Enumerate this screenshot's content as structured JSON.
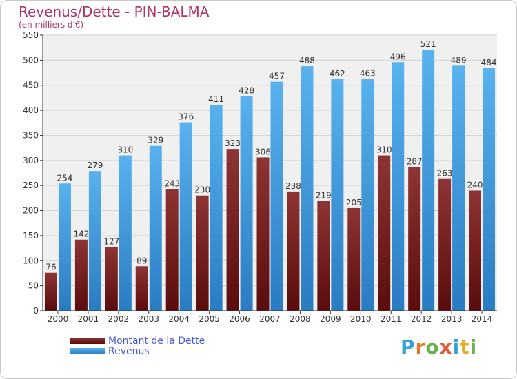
{
  "header": {
    "title": "Revenus/Dette - PIN-BALMA",
    "subtitle": "(en milliers d'€)"
  },
  "chart_data": {
    "type": "bar",
    "title": "Revenus/Dette - PIN-BALMA",
    "subtitle": "(en milliers d'€)",
    "categories": [
      "2000",
      "2001",
      "2002",
      "2003",
      "2004",
      "2005",
      "2006",
      "2007",
      "2008",
      "2009",
      "2010",
      "2011",
      "2012",
      "2013",
      "2014"
    ],
    "series": [
      {
        "name": "Montant de la Dette",
        "color": "#8a2a2a",
        "values": [
          76,
          142,
          127,
          89,
          243,
          230,
          323,
          306,
          238,
          219,
          205,
          310,
          287,
          263,
          240
        ]
      },
      {
        "name": "Revenus",
        "color": "#4aa6e6",
        "values": [
          254,
          279,
          310,
          329,
          376,
          411,
          428,
          457,
          488,
          462,
          463,
          496,
          521,
          489,
          484
        ]
      }
    ],
    "ylim": [
      0,
      550
    ],
    "yticks": [
      0,
      50,
      100,
      150,
      200,
      250,
      300,
      350,
      400,
      450,
      500,
      550
    ],
    "grid": true,
    "legend_position": "bottom-left"
  },
  "legend": {
    "items": [
      {
        "label": "Montant de la Dette",
        "color": "#8a2a2a"
      },
      {
        "label": "Revenus",
        "color": "#4aa6e6"
      }
    ]
  },
  "logo": {
    "text": "Proxiti",
    "letter_colors": [
      "#3aa0d8",
      "#e07a2a",
      "#6ab04c",
      "#e05a3a",
      "#3aa0d8",
      "#e0b02a",
      "#6ab04c"
    ]
  }
}
